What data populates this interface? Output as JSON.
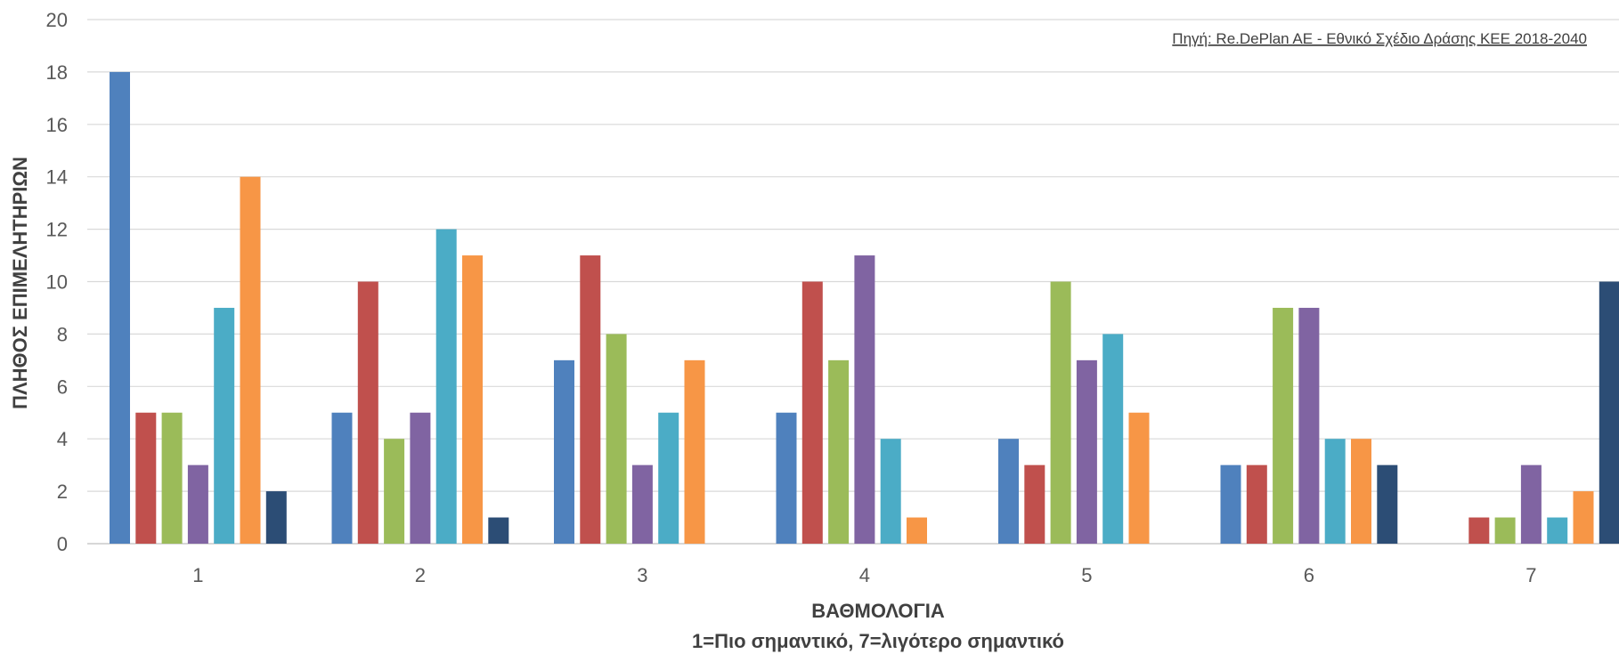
{
  "chart_data": {
    "type": "bar",
    "categories": [
      "1",
      "2",
      "3",
      "4",
      "5",
      "6",
      "7"
    ],
    "series": [
      {
        "color": "#4F81BD",
        "values": [
          18,
          5,
          7,
          5,
          4,
          3,
          0
        ]
      },
      {
        "color": "#C0504D",
        "values": [
          5,
          10,
          11,
          10,
          3,
          3,
          1
        ]
      },
      {
        "color": "#9BBB59",
        "values": [
          5,
          4,
          8,
          7,
          10,
          9,
          1
        ]
      },
      {
        "color": "#8064A2",
        "values": [
          3,
          5,
          3,
          11,
          7,
          9,
          3
        ]
      },
      {
        "color": "#4BACC6",
        "values": [
          9,
          12,
          5,
          4,
          8,
          4,
          1
        ]
      },
      {
        "color": "#F79646",
        "values": [
          14,
          11,
          7,
          1,
          5,
          4,
          2
        ]
      },
      {
        "color": "#2C4D75",
        "values": [
          2,
          1,
          0,
          0,
          0,
          3,
          10
        ]
      }
    ],
    "ylim": [
      0,
      20
    ],
    "yticks": [
      "0",
      "2",
      "4",
      "6",
      "8",
      "10",
      "12",
      "14",
      "16",
      "18",
      "20"
    ],
    "ylabel": "ΠΛΗΘΟΣ ΕΠΙΜΕΛΗΤΗΡΙΩΝ",
    "xlabel": "ΒΑΘΜΟΛΟΓΙΑ",
    "xlabel2": "1=Πιο σημαντικό,  7=λιγότερο σημαντικό",
    "source": "Πηγή: Re.DePlan AE - Εθνικό Σχέδιο Δράσης ΚΕΕ 2018-2040",
    "grid": true
  }
}
